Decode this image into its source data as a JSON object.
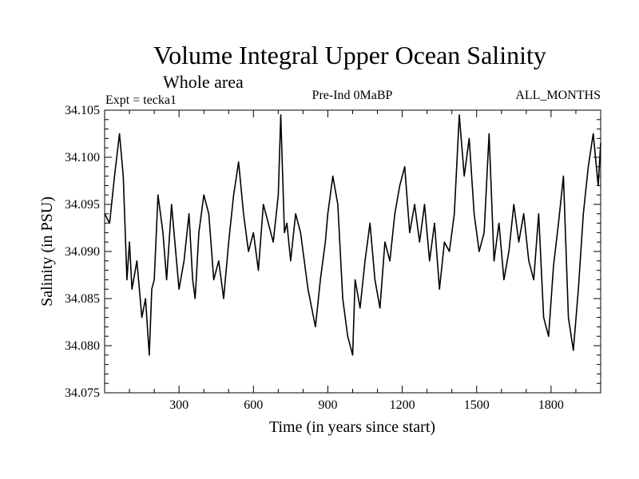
{
  "chart_data": {
    "type": "line",
    "title": "Volume Integral Upper Ocean Salinity",
    "subtitle": "Whole area",
    "left_label": "Expt = tecka1",
    "center_label": "Pre-Ind 0MaBP",
    "right_label": "ALL_MONTHS",
    "xlabel": "Time (in years since start)",
    "ylabel": "Salinity (in PSU)",
    "xlim": [
      0,
      2000
    ],
    "ylim": [
      34.075,
      34.105
    ],
    "x_ticks": [
      300,
      600,
      900,
      1200,
      1500,
      1800
    ],
    "x_tick_labels": [
      "300",
      "600",
      "900",
      "1200",
      "1500",
      "1800"
    ],
    "y_ticks": [
      34.075,
      34.08,
      34.085,
      34.09,
      34.095,
      34.1,
      34.105
    ],
    "y_tick_labels": [
      "34.075",
      "34.080",
      "34.085",
      "34.090",
      "34.095",
      "34.100",
      "34.105"
    ],
    "grid": false,
    "line_color": "#000000",
    "series": [
      {
        "name": "Salinity",
        "x": [
          0,
          20,
          40,
          60,
          75,
          90,
          100,
          110,
          130,
          150,
          165,
          180,
          190,
          200,
          215,
          235,
          250,
          270,
          290,
          300,
          320,
          340,
          355,
          365,
          380,
          400,
          420,
          440,
          460,
          480,
          500,
          520,
          540,
          560,
          580,
          600,
          620,
          640,
          660,
          680,
          700,
          710,
          725,
          735,
          750,
          770,
          790,
          810,
          820,
          850,
          870,
          890,
          900,
          920,
          940,
          960,
          980,
          1000,
          1010,
          1030,
          1050,
          1070,
          1090,
          1110,
          1130,
          1150,
          1170,
          1190,
          1210,
          1230,
          1250,
          1270,
          1290,
          1310,
          1330,
          1350,
          1370,
          1390,
          1410,
          1430,
          1450,
          1470,
          1490,
          1510,
          1530,
          1550,
          1570,
          1590,
          1610,
          1630,
          1650,
          1670,
          1690,
          1710,
          1730,
          1750,
          1770,
          1790,
          1810,
          1830,
          1850,
          1870,
          1890,
          1910,
          1930,
          1950,
          1970,
          1990,
          2000
        ],
        "values": [
          34.094,
          34.093,
          34.098,
          34.1025,
          34.098,
          34.087,
          34.091,
          34.086,
          34.089,
          34.083,
          34.085,
          34.079,
          34.086,
          34.087,
          34.096,
          34.092,
          34.087,
          34.095,
          34.089,
          34.086,
          34.089,
          34.094,
          34.087,
          34.085,
          34.092,
          34.096,
          34.094,
          34.087,
          34.089,
          34.085,
          34.091,
          34.096,
          34.0995,
          34.094,
          34.09,
          34.092,
          34.088,
          34.095,
          34.093,
          34.091,
          34.096,
          34.1045,
          34.092,
          34.093,
          34.089,
          34.094,
          34.092,
          34.088,
          34.086,
          34.082,
          34.087,
          34.091,
          34.094,
          34.098,
          34.095,
          34.085,
          34.081,
          34.079,
          34.087,
          34.084,
          34.089,
          34.093,
          34.087,
          34.084,
          34.091,
          34.089,
          34.094,
          34.097,
          34.099,
          34.092,
          34.095,
          34.091,
          34.095,
          34.089,
          34.093,
          34.086,
          34.091,
          34.09,
          34.094,
          34.1045,
          34.098,
          34.102,
          34.094,
          34.09,
          34.092,
          34.1025,
          34.089,
          34.093,
          34.087,
          34.09,
          34.095,
          34.091,
          34.094,
          34.089,
          34.087,
          34.094,
          34.083,
          34.081,
          34.0885,
          34.093,
          34.098,
          34.083,
          34.0795,
          34.086,
          34.094,
          34.099,
          34.1025,
          34.097,
          34.1015
        ]
      }
    ]
  }
}
